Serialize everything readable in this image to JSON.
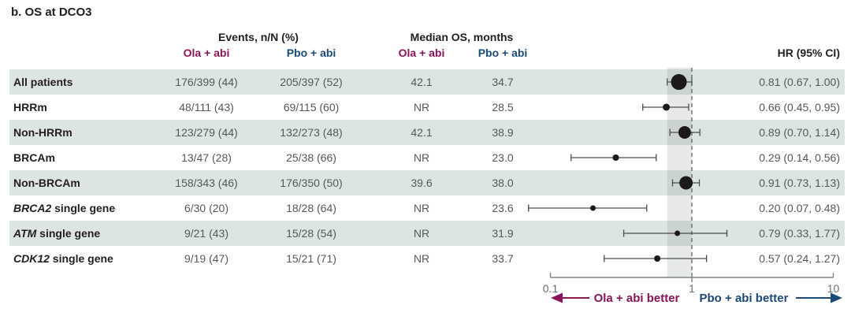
{
  "title": "b. OS at DCO3",
  "colors": {
    "ola_accent": "#8a1457",
    "pbo_accent": "#1a4a78",
    "row_shade": "#dde5e3",
    "marker": "#1a1a1a",
    "axis": "#7f8486",
    "ci_line": "#4a4d4f",
    "reference_band": "rgba(120,128,134,0.18)",
    "data_text": "#55585a"
  },
  "header": {
    "events_group": "Events, n/N (%)",
    "median_group": "Median OS, months",
    "ola_label": "Ola + abi",
    "pbo_label": "Pbo + abi",
    "hr_label": "HR (95% CI)"
  },
  "chart_data": {
    "type": "forest",
    "x_axis": {
      "scale": "log",
      "ticks": [
        0.1,
        1,
        10
      ],
      "tick_labels": [
        "0.1",
        "1",
        "10"
      ],
      "reference_line": 1,
      "shaded_band": [
        0.67,
        1.0
      ]
    },
    "rows": [
      {
        "label_italic": "",
        "label_rest": "All patients",
        "events_ola": "176/399 (44)",
        "events_pbo": "205/397 (52)",
        "median_ola": "42.1",
        "median_pbo": "34.7",
        "hr": 0.81,
        "ci_low": 0.67,
        "ci_high": 1.0,
        "hr_text": "0.81 (0.67, 1.00)",
        "marker_r": 10,
        "shaded": true
      },
      {
        "label_italic": "",
        "label_rest": "HRRm",
        "events_ola": "48/111 (43)",
        "events_pbo": "69/115 (60)",
        "median_ola": "NR",
        "median_pbo": "28.5",
        "hr": 0.66,
        "ci_low": 0.45,
        "ci_high": 0.95,
        "hr_text": "0.66 (0.45, 0.95)",
        "marker_r": 4.5,
        "shaded": false
      },
      {
        "label_italic": "",
        "label_rest": "Non-HRRm",
        "events_ola": "123/279 (44)",
        "events_pbo": "132/273 (48)",
        "median_ola": "42.1",
        "median_pbo": "38.9",
        "hr": 0.89,
        "ci_low": 0.7,
        "ci_high": 1.14,
        "hr_text": "0.89 (0.70, 1.14)",
        "marker_r": 8,
        "shaded": true
      },
      {
        "label_italic": "",
        "label_rest": "BRCAm",
        "events_ola": "13/47 (28)",
        "events_pbo": "25/38 (66)",
        "median_ola": "NR",
        "median_pbo": "23.0",
        "hr": 0.29,
        "ci_low": 0.14,
        "ci_high": 0.56,
        "hr_text": "0.29 (0.14, 0.56)",
        "marker_r": 4,
        "shaded": false
      },
      {
        "label_italic": "",
        "label_rest": "Non-BRCAm",
        "events_ola": "158/343 (46)",
        "events_pbo": "176/350 (50)",
        "median_ola": "39.6",
        "median_pbo": "38.0",
        "hr": 0.91,
        "ci_low": 0.73,
        "ci_high": 1.13,
        "hr_text": "0.91 (0.73, 1.13)",
        "marker_r": 8.5,
        "shaded": true
      },
      {
        "label_italic": "BRCA2",
        "label_rest": " single gene",
        "events_ola": "6/30 (20)",
        "events_pbo": "18/28 (64)",
        "median_ola": "NR",
        "median_pbo": "23.6",
        "hr": 0.2,
        "ci_low": 0.07,
        "ci_high": 0.48,
        "hr_text": "0.20 (0.07, 0.48)",
        "marker_r": 3.5,
        "shaded": false
      },
      {
        "label_italic": "ATM",
        "label_rest": " single gene",
        "events_ola": "9/21 (43)",
        "events_pbo": "15/28 (54)",
        "median_ola": "NR",
        "median_pbo": "31.9",
        "hr": 0.79,
        "ci_low": 0.33,
        "ci_high": 1.77,
        "hr_text": "0.79 (0.33, 1.77)",
        "marker_r": 3.5,
        "shaded": true
      },
      {
        "label_italic": "CDK12",
        "label_rest": " single gene",
        "events_ola": "9/19 (47)",
        "events_pbo": "15/21 (71)",
        "median_ola": "NR",
        "median_pbo": "33.7",
        "hr": 0.57,
        "ci_low": 0.24,
        "ci_high": 1.27,
        "hr_text": "0.57 (0.24, 1.27)",
        "marker_r": 4,
        "shaded": false
      }
    ],
    "footer": {
      "left_arrow_label": "Ola + abi better",
      "right_arrow_label": "Pbo + abi better"
    }
  }
}
